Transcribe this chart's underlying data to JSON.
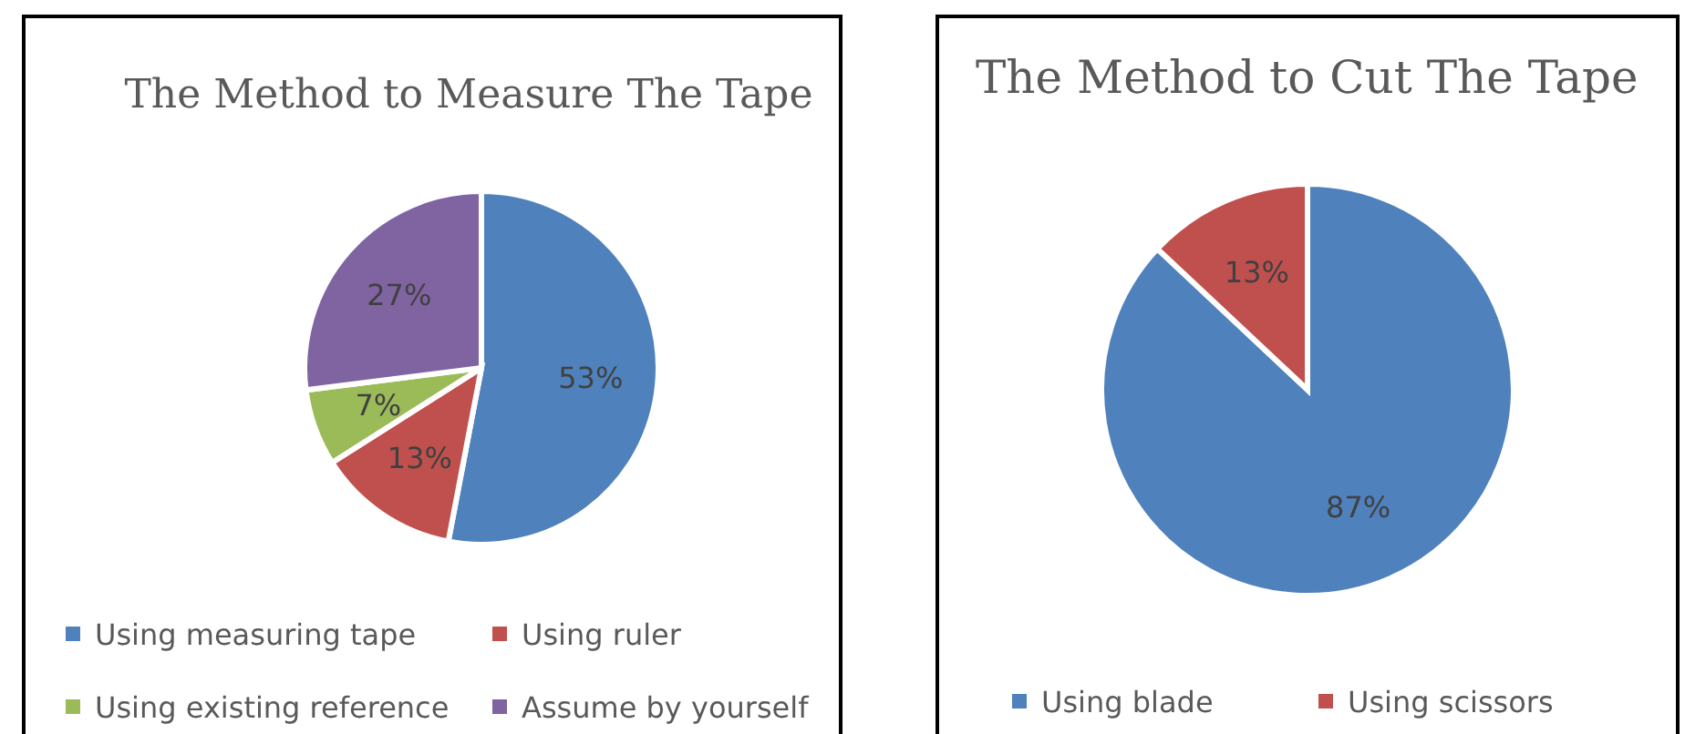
{
  "chart_data": [
    {
      "type": "pie",
      "title": "The Method to Measure The Tape",
      "categories": [
        "Using measuring tape",
        "Using ruler",
        "Using existing reference",
        "Assume by yourself"
      ],
      "values": [
        53,
        13,
        7,
        27
      ],
      "colors": [
        "#4f81bd",
        "#c0504d",
        "#9bbb59",
        "#8064a2"
      ],
      "value_labels": [
        "53%",
        "13%",
        "7%",
        "27%"
      ],
      "legend": "bottom"
    },
    {
      "type": "pie",
      "title": "The Method to Cut The Tape",
      "categories": [
        "Using blade",
        "Using scissors"
      ],
      "values": [
        87,
        13
      ],
      "colors": [
        "#4f81bd",
        "#c0504d"
      ],
      "value_labels": [
        "87%",
        "13%"
      ],
      "legend": "bottom"
    }
  ]
}
